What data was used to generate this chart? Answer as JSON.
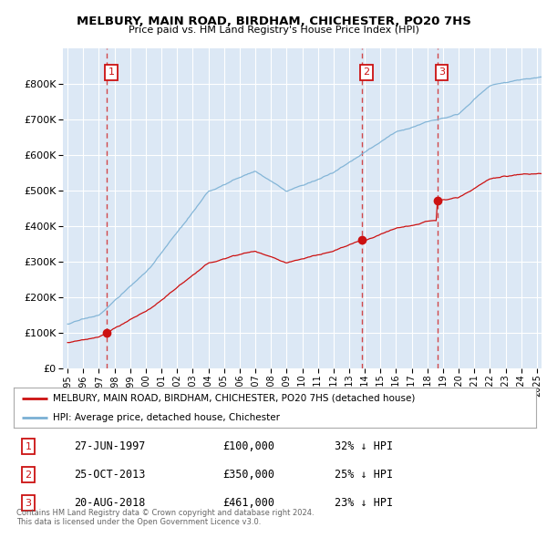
{
  "title": "MELBURY, MAIN ROAD, BIRDHAM, CHICHESTER, PO20 7HS",
  "subtitle": "Price paid vs. HM Land Registry's House Price Index (HPI)",
  "legend_label_red": "MELBURY, MAIN ROAD, BIRDHAM, CHICHESTER, PO20 7HS (detached house)",
  "legend_label_blue": "HPI: Average price, detached house, Chichester",
  "sales": [
    {
      "num": 1,
      "date": "27-JUN-1997",
      "price": 100000,
      "year": 1997.49,
      "pct": "32% ↓ HPI"
    },
    {
      "num": 2,
      "date": "25-OCT-2013",
      "price": 350000,
      "year": 2013.81,
      "pct": "25% ↓ HPI"
    },
    {
      "num": 3,
      "date": "20-AUG-2018",
      "price": 461000,
      "year": 2018.63,
      "pct": "23% ↓ HPI"
    }
  ],
  "footer": "Contains HM Land Registry data © Crown copyright and database right 2024.\nThis data is licensed under the Open Government Licence v3.0.",
  "xmin": 1994.7,
  "xmax": 2025.3,
  "ymin": 0,
  "ymax": 900000,
  "yticks": [
    0,
    100000,
    200000,
    300000,
    400000,
    500000,
    600000,
    700000,
    800000
  ],
  "background_color": "#dce8f5",
  "red_color": "#cc1111",
  "blue_color": "#7ab0d4"
}
